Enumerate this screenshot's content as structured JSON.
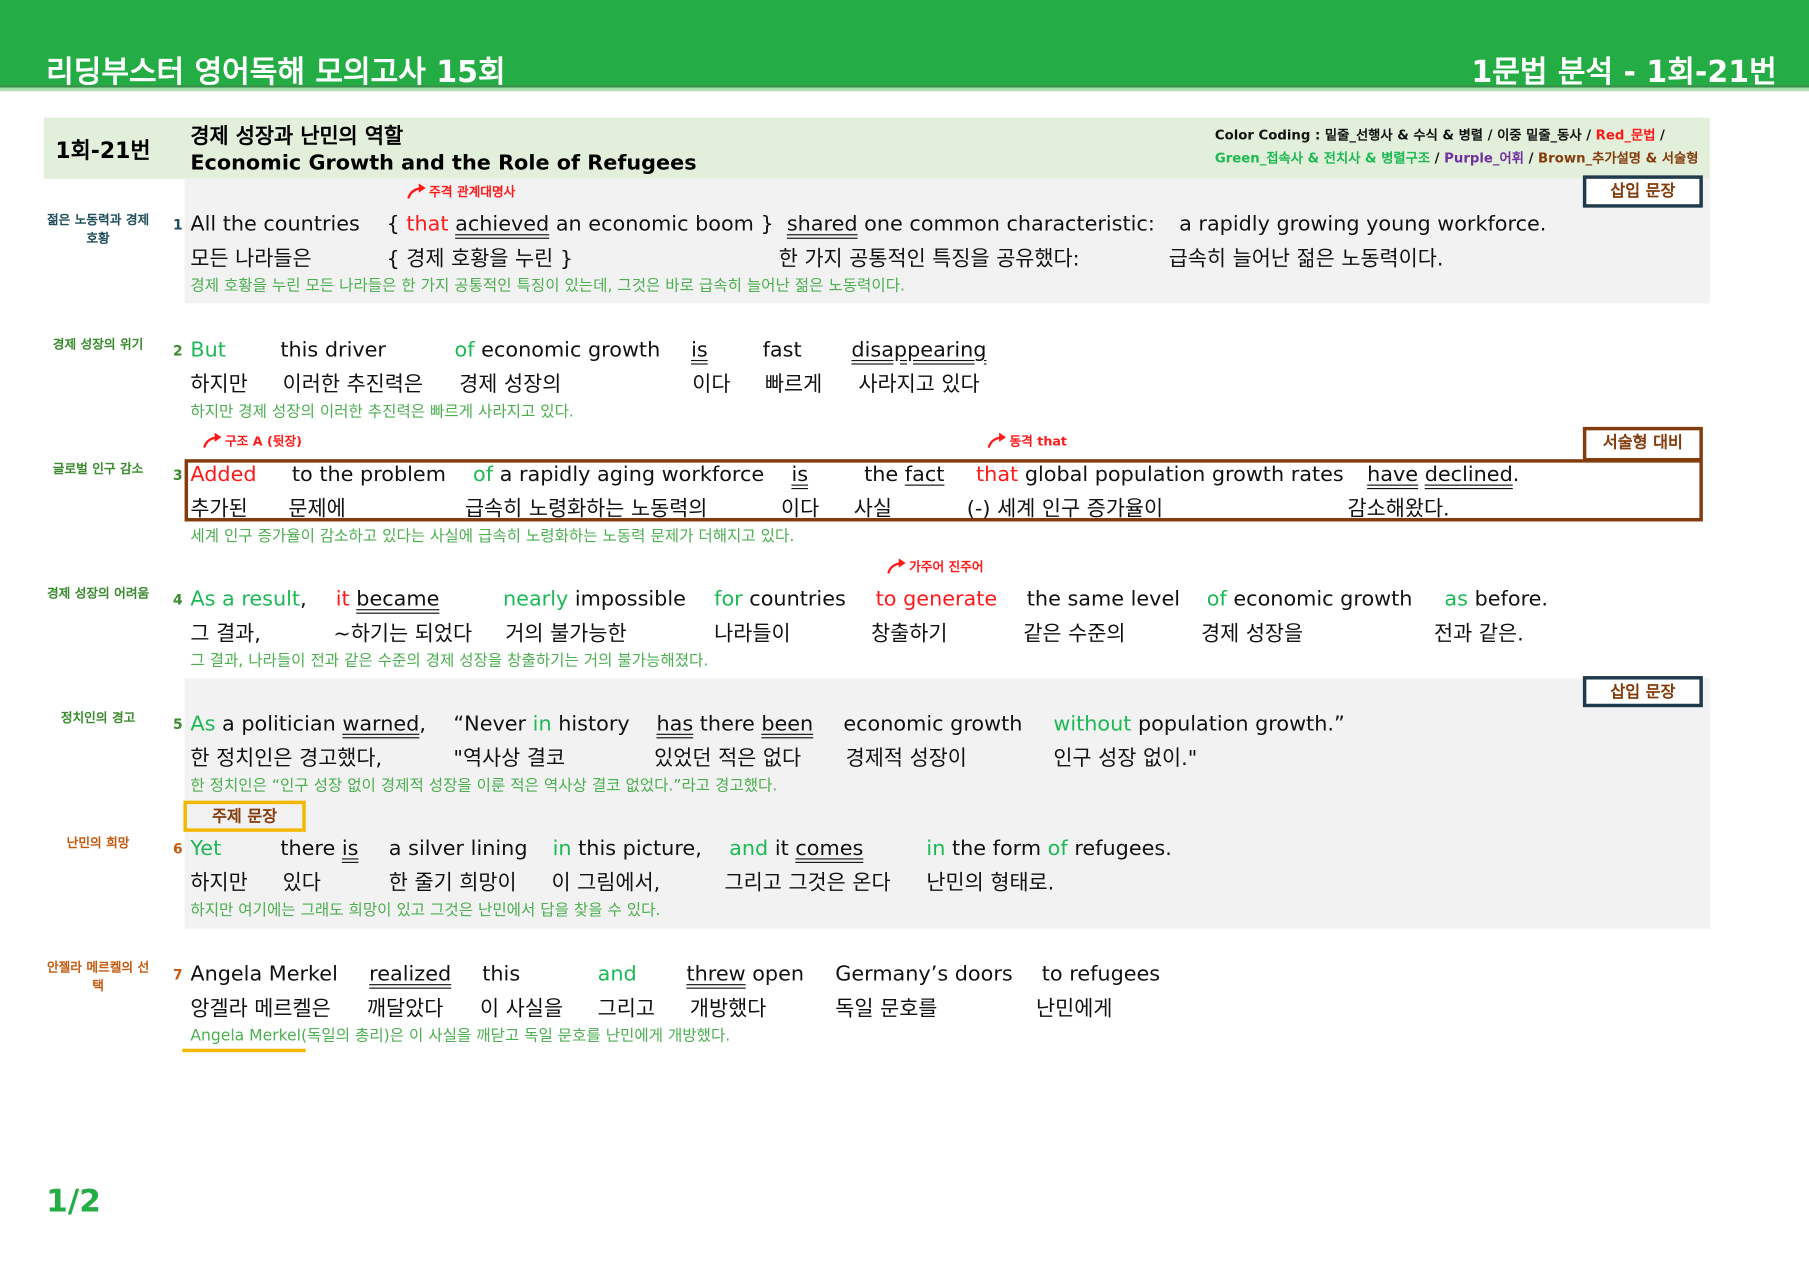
{
  "header": {
    "title": "리딩부스터 영어독해 모의고사 15회",
    "right_title": "1문법 분석 - 1회-21번"
  },
  "titlebox": {
    "id": "1회-21번",
    "title_ko": "경제 성장과 난민의 역할",
    "title_en": "Economic Growth and the Role of Refugees"
  },
  "color_coding": {
    "line1": [
      [
        "Color Coding : 밑줄_선행사 & 수식 & 병렬 / 이중 밑줄_동사 / ",
        "#111111"
      ],
      [
        "Red_문법",
        "#ff1a1a"
      ],
      [
        " /",
        "#111111"
      ]
    ],
    "line2": [
      [
        "Green_접속사 & 전치사 & 병렬구조",
        "#1db954"
      ],
      [
        " / ",
        "#111111"
      ],
      [
        "Purple_어휘",
        "#7030a0"
      ],
      [
        " / ",
        "#111111"
      ],
      [
        "Brown_추가설명 & 서술형",
        "#843c0c"
      ]
    ]
  },
  "colors": {
    "header": "#25ad45",
    "green": "#1db954",
    "red": "#ff1a1a",
    "brown": "#843c0c",
    "translation": "#4caf50"
  },
  "badges": {
    "insert": "삽입 문장",
    "essay": "서술형 대비",
    "topic": "주제 문장"
  },
  "rows": [
    {
      "num": "1",
      "label": "젊은 노동력과 경제 호황",
      "label_color": "#1f4e5a",
      "annotations": [
        "주격 관계대명사"
      ],
      "chunks": [
        {
          "en": [
            [
              "All the countries",
              ""
            ]
          ],
          "ko": "모든 나라들은"
        },
        {
          "en": [
            [
              "{ ",
              ""
            ],
            [
              "that",
              "r"
            ],
            [
              " ",
              ""
            ],
            [
              "achieved",
              "uu"
            ],
            [
              " an economic boom }",
              ""
            ]
          ],
          "ko": "{ 경제 호황을 누린 }"
        },
        {
          "en": [
            [
              "shared",
              "uu"
            ],
            [
              " one common characteristic:",
              ""
            ]
          ],
          "ko": "한 가지 공통적인 특징을 공유했다:"
        },
        {
          "en": [
            [
              "a rapidly growing young workforce.",
              ""
            ]
          ],
          "ko": "급속히 늘어난 젊은 노동력이다."
        }
      ],
      "translation": "경제 호황을 누린 모든 나라들은 한 가지 공통적인 특징이 있는데, 그것은 바로 급속히 늘어난 젊은 노동력이다."
    },
    {
      "num": "2",
      "label": "경제 성장의 위기",
      "label_color": "#3a8a2e",
      "annotations": [],
      "chunks": [
        {
          "en": [
            [
              "But",
              "g"
            ]
          ],
          "ko": "하지만"
        },
        {
          "en": [
            [
              "this driver",
              ""
            ]
          ],
          "ko": "이러한 추진력은"
        },
        {
          "en": [
            [
              "of",
              "g"
            ],
            [
              " economic growth",
              ""
            ]
          ],
          "ko": "경제 성장의"
        },
        {
          "en": [
            [
              "is",
              "uu"
            ]
          ],
          "ko": "이다"
        },
        {
          "en": [
            [
              "fast",
              ""
            ]
          ],
          "ko": "빠르게"
        },
        {
          "en": [
            [
              "disappearing",
              "uu"
            ]
          ],
          "ko": "사라지고 있다"
        }
      ],
      "translation": "하지만 경제 성장의 이러한 추진력은 빠르게 사라지고 있다."
    },
    {
      "num": "3",
      "label": "글로벌 인구 감소",
      "label_color": "#3a8a2e",
      "annotations": [
        "구조 A (뒷장)",
        "동격 that"
      ],
      "chunks": [
        {
          "en": [
            [
              "Added",
              "r"
            ]
          ],
          "ko": "추가된"
        },
        {
          "en": [
            [
              "to the problem",
              ""
            ]
          ],
          "ko": "문제에"
        },
        {
          "en": [
            [
              "of",
              "g"
            ],
            [
              " a rapidly aging workforce",
              ""
            ]
          ],
          "ko": "급속히 노령화하는 노동력의"
        },
        {
          "en": [
            [
              "is",
              "uu"
            ]
          ],
          "ko": "이다"
        },
        {
          "en": [
            [
              "the ",
              ""
            ],
            [
              "fact",
              "u"
            ]
          ],
          "ko": "사실"
        },
        {
          "en": [
            [
              "that",
              "r"
            ],
            [
              " global population growth rates",
              ""
            ]
          ],
          "ko": "(-) 세계 인구 증가율이"
        },
        {
          "en": [
            [
              "have",
              "uu"
            ],
            [
              " ",
              ""
            ],
            [
              "declined",
              "uu"
            ],
            [
              ".",
              ""
            ]
          ],
          "ko": "감소해왔다."
        }
      ],
      "translation": "세계 인구 증가율이 감소하고 있다는 사실에 급속히 노령화하는 노동력 문제가 더해지고 있다."
    },
    {
      "num": "4",
      "label": "경제 성장의 어려움",
      "label_color": "#3a8a2e",
      "annotations": [
        "가주어 진주어"
      ],
      "chunks": [
        {
          "en": [
            [
              "As a result",
              "g"
            ],
            [
              ",",
              ""
            ]
          ],
          "ko": "그 결과,"
        },
        {
          "en": [
            [
              "it",
              "r"
            ],
            [
              " ",
              ""
            ],
            [
              "became",
              "uu"
            ]
          ],
          "ko": "~하기는 되었다"
        },
        {
          "en": [
            [
              "nearly",
              "g"
            ],
            [
              " impossible",
              ""
            ]
          ],
          "ko": "거의 불가능한"
        },
        {
          "en": [
            [
              "for",
              "g"
            ],
            [
              " countries",
              ""
            ]
          ],
          "ko": "나라들이"
        },
        {
          "en": [
            [
              "to generate",
              "r"
            ]
          ],
          "ko": "창출하기"
        },
        {
          "en": [
            [
              "the same level",
              ""
            ]
          ],
          "ko": "같은 수준의"
        },
        {
          "en": [
            [
              "of",
              "g"
            ],
            [
              " economic growth",
              ""
            ]
          ],
          "ko": "경제 성장을"
        },
        {
          "en": [
            [
              "as",
              "g"
            ],
            [
              " before.",
              ""
            ]
          ],
          "ko": "전과 같은."
        }
      ],
      "translation": "그 결과, 나라들이 전과 같은 수준의 경제 성장을 창출하기는 거의 불가능해졌다."
    },
    {
      "num": "5",
      "label": "정치인의 경고",
      "label_color": "#3a8a2e",
      "annotations": [],
      "chunks": [
        {
          "en": [
            [
              "As",
              "g"
            ],
            [
              " a politician ",
              ""
            ],
            [
              "warned",
              "uu"
            ],
            [
              ",",
              ""
            ]
          ],
          "ko": "한 정치인은 경고했다,"
        },
        {
          "en": [
            [
              "“Never ",
              ""
            ],
            [
              "in",
              "g"
            ],
            [
              " history",
              ""
            ]
          ],
          "ko": "\"역사상 결코"
        },
        {
          "en": [
            [
              "has",
              "uu"
            ],
            [
              " there ",
              ""
            ],
            [
              "been",
              "uu"
            ]
          ],
          "ko": "있었던 적은 없다"
        },
        {
          "en": [
            [
              "economic growth",
              ""
            ]
          ],
          "ko": "경제적 성장이"
        },
        {
          "en": [
            [
              "without",
              "g"
            ],
            [
              " population growth.”",
              ""
            ]
          ],
          "ko": "인구 성장 없이.\""
        }
      ],
      "translation": "한 정치인은 “인구 성장 없이 경제적 성장을 이룬 적은 역사상 결코 없었다.”라고 경고했다."
    },
    {
      "num": "6",
      "label": "난민의 희망",
      "label_color": "#c55a11",
      "annotations": [],
      "chunks": [
        {
          "en": [
            [
              "Yet",
              "g"
            ]
          ],
          "ko": "하지만"
        },
        {
          "en": [
            [
              "there ",
              ""
            ],
            [
              "is",
              "uu"
            ]
          ],
          "ko": "있다"
        },
        {
          "en": [
            [
              "a silver lining",
              ""
            ]
          ],
          "ko": "한 줄기 희망이"
        },
        {
          "en": [
            [
              "in",
              "g"
            ],
            [
              " this picture,",
              ""
            ]
          ],
          "ko": "이 그림에서,"
        },
        {
          "en": [
            [
              "and",
              "g"
            ],
            [
              " it ",
              ""
            ],
            [
              "comes",
              "uu"
            ]
          ],
          "ko": "그리고 그것은 온다"
        },
        {
          "en": [
            [
              "in",
              "g"
            ],
            [
              " the form ",
              ""
            ],
            [
              "of",
              "g"
            ],
            [
              " refugees.",
              ""
            ]
          ],
          "ko": "난민의 형태로."
        }
      ],
      "translation": "하지만 여기에는 그래도 희망이 있고 그것은 난민에서 답을 찾을 수 있다."
    },
    {
      "num": "7",
      "label": "안젤라 메르켈의 선택",
      "label_color": "#c55a11",
      "annotations": [],
      "chunks": [
        {
          "en": [
            [
              "Angela Merkel",
              ""
            ]
          ],
          "ko": "앙겔라 메르켈은"
        },
        {
          "en": [
            [
              "realized",
              "uu"
            ]
          ],
          "ko": "깨달았다"
        },
        {
          "en": [
            [
              "this",
              ""
            ]
          ],
          "ko": "이 사실을"
        },
        {
          "en": [
            [
              "and",
              "g"
            ]
          ],
          "ko": "그리고"
        },
        {
          "en": [
            [
              "threw",
              "uu"
            ],
            [
              " open",
              ""
            ]
          ],
          "ko": "개방했다"
        },
        {
          "en": [
            [
              "Germany’s doors",
              ""
            ]
          ],
          "ko": "독일 문호를"
        },
        {
          "en": [
            [
              "to refugees",
              ""
            ]
          ],
          "ko": "난민에게"
        }
      ],
      "translation": "Angela Merkel(독일의 총리)은 이 사실을 깨닫고 독일 문호를 난민에게 개방했다."
    }
  ],
  "footer": {
    "page": "1/2"
  }
}
